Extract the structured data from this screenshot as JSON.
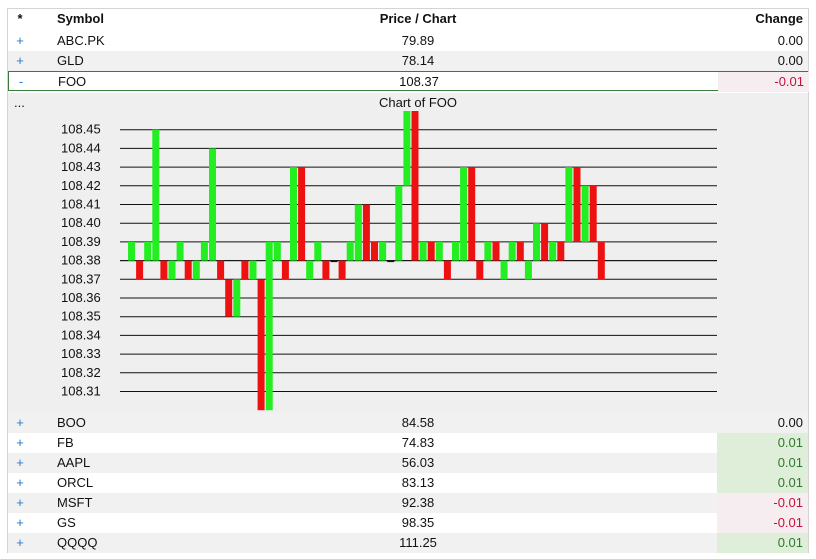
{
  "header": {
    "star": "*",
    "symbol": "Symbol",
    "price": "Price / Chart",
    "change": "Change"
  },
  "rows_top": [
    {
      "toggle": "+",
      "symbol": "ABC.PK",
      "price": "79.89",
      "change": "0.00",
      "dir": "zero"
    },
    {
      "toggle": "+",
      "symbol": "GLD",
      "price": "78.14",
      "change": "0.00",
      "dir": "zero"
    },
    {
      "toggle": "-",
      "symbol": "FOO",
      "price": "108.37",
      "change": "-0.01",
      "dir": "neg"
    }
  ],
  "chart_panel": {
    "more": "...",
    "title": "Chart of FOO"
  },
  "rows_bottom": [
    {
      "toggle": "+",
      "symbol": "BOO",
      "price": "84.58",
      "change": "0.00",
      "dir": "zero"
    },
    {
      "toggle": "+",
      "symbol": "FB",
      "price": "74.83",
      "change": "0.01",
      "dir": "pos"
    },
    {
      "toggle": "+",
      "symbol": "AAPL",
      "price": "56.03",
      "change": "0.01",
      "dir": "pos"
    },
    {
      "toggle": "+",
      "symbol": "ORCL",
      "price": "83.13",
      "change": "0.01",
      "dir": "pos"
    },
    {
      "toggle": "+",
      "symbol": "MSFT",
      "price": "92.38",
      "change": "-0.01",
      "dir": "neg"
    },
    {
      "toggle": "+",
      "symbol": "GS",
      "price": "98.35",
      "change": "-0.01",
      "dir": "neg"
    },
    {
      "toggle": "+",
      "symbol": "QQQQ",
      "price": "111.25",
      "change": "0.01",
      "dir": "pos"
    }
  ],
  "colors": {
    "up": "#22ee22",
    "down": "#ee1111",
    "flat": "#111111"
  },
  "chart_data": {
    "type": "bar",
    "title": "Chart of FOO",
    "ylim": [
      108.3,
      108.46
    ],
    "yticks": [
      "108.45",
      "108.44",
      "108.43",
      "108.42",
      "108.41",
      "108.40",
      "108.39",
      "108.38",
      "108.37",
      "108.36",
      "108.35",
      "108.34",
      "108.33",
      "108.32",
      "108.31"
    ],
    "grid": true,
    "baseline": 108.38,
    "bars": [
      [
        108.39,
        108.38
      ],
      [
        108.38,
        108.37
      ],
      [
        108.39,
        108.38
      ],
      [
        108.45,
        108.38
      ],
      [
        108.38,
        108.37
      ],
      [
        108.38,
        108.37
      ],
      [
        108.39,
        108.38
      ],
      [
        108.38,
        108.37
      ],
      [
        108.38,
        108.37
      ],
      [
        108.39,
        108.38
      ],
      [
        108.44,
        108.38
      ],
      [
        108.38,
        108.37
      ],
      [
        108.37,
        108.35
      ],
      [
        108.37,
        108.35
      ],
      [
        108.38,
        108.37
      ],
      [
        108.38,
        108.37
      ],
      [
        108.37,
        108.3
      ],
      [
        108.39,
        108.3
      ],
      [
        108.39,
        108.38
      ],
      [
        108.38,
        108.37
      ],
      [
        108.43,
        108.38
      ],
      [
        108.43,
        108.38
      ],
      [
        108.38,
        108.37
      ],
      [
        108.39,
        108.38
      ],
      [
        108.38,
        108.37
      ],
      [
        108.38,
        108.38
      ],
      [
        108.38,
        108.37
      ],
      [
        108.39,
        108.38
      ],
      [
        108.41,
        108.38
      ],
      [
        108.41,
        108.38
      ],
      [
        108.39,
        108.38
      ],
      [
        108.39,
        108.38
      ],
      [
        108.38,
        108.38
      ],
      [
        108.42,
        108.38
      ],
      [
        108.46,
        108.42
      ],
      [
        108.46,
        108.38
      ],
      [
        108.39,
        108.38
      ],
      [
        108.39,
        108.38
      ],
      [
        108.39,
        108.38
      ],
      [
        108.38,
        108.37
      ],
      [
        108.39,
        108.38
      ],
      [
        108.43,
        108.38
      ],
      [
        108.43,
        108.38
      ],
      [
        108.38,
        108.37
      ],
      [
        108.39,
        108.38
      ],
      [
        108.39,
        108.38
      ],
      [
        108.38,
        108.37
      ],
      [
        108.39,
        108.38
      ],
      [
        108.39,
        108.38
      ],
      [
        108.38,
        108.37
      ],
      [
        108.4,
        108.38
      ],
      [
        108.4,
        108.38
      ],
      [
        108.39,
        108.38
      ],
      [
        108.39,
        108.38
      ],
      [
        108.43,
        108.39
      ],
      [
        108.43,
        108.39
      ],
      [
        108.42,
        108.39
      ],
      [
        108.42,
        108.39
      ],
      [
        108.39,
        108.37
      ]
    ],
    "colors": [
      "up",
      "down",
      "up",
      "up",
      "down",
      "up",
      "up",
      "down",
      "up",
      "up",
      "up",
      "down",
      "down",
      "up",
      "down",
      "up",
      "down",
      "up",
      "up",
      "down",
      "up",
      "down",
      "up",
      "up",
      "down",
      "flat",
      "down",
      "up",
      "up",
      "down",
      "down",
      "up",
      "flat",
      "up",
      "up",
      "down",
      "up",
      "down",
      "up",
      "down",
      "up",
      "up",
      "down",
      "down",
      "up",
      "down",
      "up",
      "up",
      "down",
      "up",
      "up",
      "down",
      "up",
      "down",
      "up",
      "down",
      "up",
      "down",
      "down"
    ]
  }
}
